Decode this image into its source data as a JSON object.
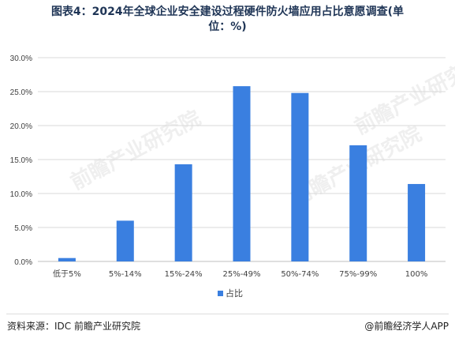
{
  "title_line1": "图表4：2024年全球企业安全建设过程硬件防火墙应用占比意愿调查(单",
  "title_line2": "位：%)",
  "source": "资料来源：IDC 前瞻产业研究院",
  "credit": "@前瞻经济学人APP",
  "watermark": "前瞻产业研究院",
  "colors": {
    "bar": "#3a7fe0",
    "grid": "#d9d9d9",
    "axis": "#bfbfbf",
    "text": "#404040"
  },
  "chart_data": {
    "type": "bar",
    "categories": [
      "低于5%",
      "5%-14%",
      "15%-24%",
      "25%-49%",
      "50%-74%",
      "75%-99%",
      "100%"
    ],
    "series": [
      {
        "name": "占比",
        "values": [
          0.5,
          6.0,
          14.3,
          25.8,
          24.8,
          17.1,
          11.4
        ]
      }
    ],
    "yticks": [
      "0.0%",
      "5.0%",
      "10.0%",
      "15.0%",
      "20.0%",
      "25.0%",
      "30.0%"
    ],
    "ylim": [
      0,
      30
    ],
    "grid": true,
    "legend": "bottom-center"
  }
}
